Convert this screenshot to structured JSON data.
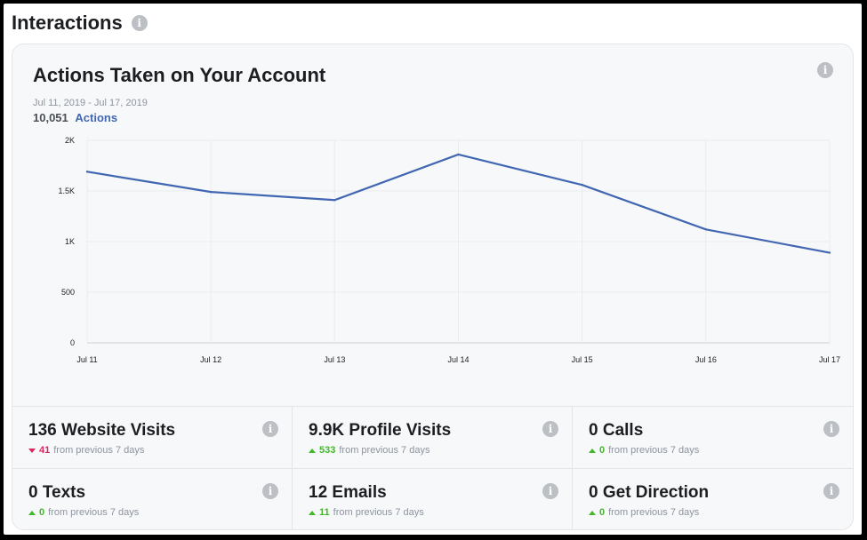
{
  "page": {
    "title": "Interactions",
    "info_icon": "info-icon"
  },
  "card": {
    "title": "Actions Taken on Your Account",
    "date_range": "Jul 11, 2019 - Jul 17, 2019",
    "total_value": "10,051",
    "total_label": "Actions"
  },
  "chart_data": {
    "type": "line",
    "title": "",
    "xlabel": "",
    "ylabel": "",
    "x": [
      "Jul 11",
      "Jul 12",
      "Jul 13",
      "Jul 14",
      "Jul 15",
      "Jul 16",
      "Jul 17"
    ],
    "series": [
      {
        "values": [
          1690,
          1490,
          1410,
          1860,
          1560,
          1120,
          890
        ],
        "color": "#4267b2"
      }
    ],
    "y_ticks": [
      0,
      500,
      1000,
      1500,
      2000
    ],
    "y_tick_labels": [
      "0",
      "500",
      "1K",
      "1.5K",
      "2K"
    ],
    "ylim": [
      0,
      2000
    ],
    "grid": true
  },
  "stats": [
    {
      "title": "136 Website Visits",
      "direction": "down",
      "change": "41",
      "suffix": "from previous 7 days"
    },
    {
      "title": "9.9K Profile Visits",
      "direction": "up",
      "change": "533",
      "suffix": "from previous 7 days"
    },
    {
      "title": "0 Calls",
      "direction": "up",
      "change": "0",
      "suffix": "from previous 7 days"
    },
    {
      "title": "0 Texts",
      "direction": "up",
      "change": "0",
      "suffix": "from previous 7 days"
    },
    {
      "title": "12 Emails",
      "direction": "up",
      "change": "11",
      "suffix": "from previous 7 days"
    },
    {
      "title": "0 Get Direction",
      "direction": "up",
      "change": "0",
      "suffix": "from previous 7 days"
    }
  ],
  "colors": {
    "accent": "#4267b2",
    "up": "#42b72a",
    "down": "#e0245e"
  }
}
